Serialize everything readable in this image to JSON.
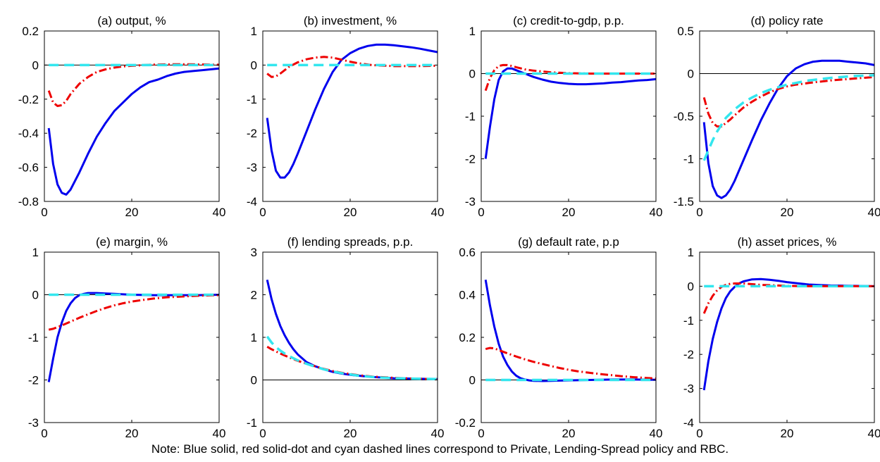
{
  "note": "Note: Blue solid, red solid-dot and cyan dashed lines correspond to Private, Lending-Spread policy and RBC.",
  "colors": {
    "private": "#0000ee",
    "lending_spread": "#ee0000",
    "rbc": "#33e6ee"
  },
  "chart_data": [
    {
      "type": "line",
      "title": "(a) output, %",
      "xlim": [
        0,
        40
      ],
      "ylim": [
        -0.8,
        0.2
      ],
      "xticks": [
        0,
        20,
        40
      ],
      "yticks": [
        0.2,
        0,
        -0.2,
        -0.4,
        -0.6,
        -0.8
      ],
      "ytick_labels": [
        "0.2",
        "0",
        "-0.2",
        "-0.4",
        "-0.6",
        "-0.8"
      ],
      "zero_line": true,
      "series": [
        {
          "style": "solid",
          "x": [
            1,
            2,
            3,
            4,
            5,
            6,
            8,
            10,
            12,
            14,
            16,
            18,
            20,
            22,
            24,
            26,
            28,
            30,
            32,
            34,
            36,
            38,
            40
          ],
          "y": [
            -0.37,
            -0.58,
            -0.7,
            -0.75,
            -0.76,
            -0.73,
            -0.63,
            -0.52,
            -0.42,
            -0.34,
            -0.27,
            -0.22,
            -0.17,
            -0.13,
            -0.1,
            -0.085,
            -0.065,
            -0.05,
            -0.04,
            -0.035,
            -0.03,
            -0.025,
            -0.02
          ]
        },
        {
          "style": "dashdot",
          "x": [
            1,
            2,
            3,
            4,
            5,
            6,
            8,
            10,
            12,
            14,
            16,
            18,
            20,
            25,
            30,
            35,
            40
          ],
          "y": [
            -0.15,
            -0.22,
            -0.24,
            -0.235,
            -0.21,
            -0.17,
            -0.11,
            -0.07,
            -0.04,
            -0.025,
            -0.015,
            -0.008,
            -0.004,
            0.003,
            0.005,
            0.004,
            0.002
          ]
        },
        {
          "style": "dashed",
          "x": [
            1,
            40
          ],
          "y": [
            0,
            0
          ]
        }
      ]
    },
    {
      "type": "line",
      "title": "(b) investment, %",
      "xlim": [
        0,
        40
      ],
      "ylim": [
        -4,
        1
      ],
      "xticks": [
        0,
        20,
        40
      ],
      "yticks": [
        1,
        0,
        -1,
        -2,
        -3,
        -4
      ],
      "ytick_labels": [
        "1",
        "0",
        "-1",
        "-2",
        "-3",
        "-4"
      ],
      "zero_line": false,
      "series": [
        {
          "style": "solid",
          "x": [
            1,
            2,
            3,
            4,
            5,
            6,
            7,
            8,
            10,
            12,
            14,
            16,
            18,
            20,
            22,
            24,
            26,
            28,
            30,
            32,
            34,
            36,
            38,
            40
          ],
          "y": [
            -1.55,
            -2.5,
            -3.1,
            -3.3,
            -3.3,
            -3.15,
            -2.9,
            -2.6,
            -1.95,
            -1.3,
            -0.7,
            -0.2,
            0.15,
            0.35,
            0.48,
            0.56,
            0.6,
            0.6,
            0.58,
            0.55,
            0.52,
            0.48,
            0.43,
            0.38
          ]
        },
        {
          "style": "dashdot",
          "x": [
            1,
            2,
            3,
            4,
            5,
            6,
            8,
            10,
            12,
            14,
            16,
            18,
            20,
            22,
            25,
            30,
            35,
            40
          ],
          "y": [
            -0.25,
            -0.35,
            -0.33,
            -0.25,
            -0.15,
            -0.05,
            0.08,
            0.17,
            0.22,
            0.24,
            0.22,
            0.16,
            0.1,
            0.05,
            0.0,
            -0.03,
            -0.03,
            -0.02
          ]
        },
        {
          "style": "dashed",
          "x": [
            1,
            40
          ],
          "y": [
            0,
            0
          ]
        }
      ]
    },
    {
      "type": "line",
      "title": "(c) credit-to-gdp, p.p.",
      "xlim": [
        0,
        40
      ],
      "ylim": [
        -3,
        1
      ],
      "xticks": [
        0,
        20,
        40
      ],
      "yticks": [
        1,
        0,
        -1,
        -2,
        -3
      ],
      "ytick_labels": [
        "1",
        "0",
        "-1",
        "-2",
        "-3"
      ],
      "zero_line": true,
      "series": [
        {
          "style": "solid",
          "x": [
            1,
            2,
            3,
            4,
            5,
            6,
            7,
            8,
            10,
            12,
            14,
            16,
            18,
            20,
            22,
            24,
            26,
            28,
            30,
            32,
            34,
            36,
            38,
            40
          ],
          "y": [
            -2.0,
            -1.25,
            -0.6,
            -0.15,
            0.05,
            0.12,
            0.12,
            0.08,
            0.0,
            -0.08,
            -0.14,
            -0.19,
            -0.22,
            -0.24,
            -0.25,
            -0.25,
            -0.24,
            -0.23,
            -0.21,
            -0.2,
            -0.18,
            -0.16,
            -0.15,
            -0.13
          ]
        },
        {
          "style": "dashdot",
          "x": [
            1,
            2,
            3,
            4,
            5,
            6,
            7,
            8,
            10,
            12,
            14,
            16,
            18,
            20,
            25,
            30,
            35,
            40
          ],
          "y": [
            -0.4,
            -0.1,
            0.08,
            0.18,
            0.2,
            0.2,
            0.18,
            0.15,
            0.1,
            0.07,
            0.05,
            0.03,
            0.02,
            0.01,
            0.0,
            0.0,
            0.0,
            0.0
          ]
        },
        {
          "style": "dashed",
          "x": [
            1,
            40
          ],
          "y": [
            0,
            0
          ]
        }
      ]
    },
    {
      "type": "line",
      "title": "(d) policy rate",
      "xlim": [
        0,
        40
      ],
      "ylim": [
        -1.5,
        0.5
      ],
      "xticks": [
        0,
        20,
        40
      ],
      "yticks": [
        0.5,
        0,
        -0.5,
        -1,
        -1.5
      ],
      "ytick_labels": [
        "0.5",
        "0",
        "-0.5",
        "-1",
        "-1.5"
      ],
      "zero_line": true,
      "series": [
        {
          "style": "solid",
          "x": [
            1,
            2,
            3,
            4,
            5,
            6,
            7,
            8,
            10,
            12,
            14,
            16,
            18,
            20,
            22,
            24,
            26,
            28,
            30,
            32,
            34,
            36,
            38,
            40
          ],
          "y": [
            -0.57,
            -1.05,
            -1.32,
            -1.43,
            -1.46,
            -1.43,
            -1.36,
            -1.26,
            -1.02,
            -0.78,
            -0.55,
            -0.35,
            -0.17,
            -0.03,
            0.06,
            0.11,
            0.14,
            0.15,
            0.15,
            0.15,
            0.14,
            0.13,
            0.12,
            0.1
          ]
        },
        {
          "style": "dashdot",
          "x": [
            1,
            2,
            3,
            4,
            5,
            6,
            7,
            8,
            10,
            12,
            14,
            16,
            18,
            20,
            22,
            25,
            30,
            35,
            40
          ],
          "y": [
            -0.28,
            -0.47,
            -0.58,
            -0.62,
            -0.62,
            -0.58,
            -0.54,
            -0.49,
            -0.4,
            -0.33,
            -0.27,
            -0.22,
            -0.18,
            -0.15,
            -0.13,
            -0.11,
            -0.08,
            -0.06,
            -0.04
          ]
        },
        {
          "style": "dashed",
          "x": [
            1,
            2,
            3,
            4,
            5,
            6,
            8,
            10,
            12,
            14,
            16,
            18,
            20,
            22,
            25,
            30,
            35,
            40
          ],
          "y": [
            -1.02,
            -0.9,
            -0.78,
            -0.68,
            -0.6,
            -0.52,
            -0.42,
            -0.34,
            -0.28,
            -0.23,
            -0.19,
            -0.16,
            -0.13,
            -0.11,
            -0.08,
            -0.05,
            -0.03,
            -0.02
          ]
        }
      ]
    },
    {
      "type": "line",
      "title": "(e) margin, %",
      "xlim": [
        0,
        40
      ],
      "ylim": [
        -3,
        1
      ],
      "xticks": [
        0,
        20,
        40
      ],
      "yticks": [
        1,
        0,
        -1,
        -2,
        -3
      ],
      "ytick_labels": [
        "1",
        "0",
        "-1",
        "-2",
        "-3"
      ],
      "zero_line": true,
      "series": [
        {
          "style": "solid",
          "x": [
            1,
            2,
            3,
            4,
            5,
            6,
            7,
            8,
            9,
            10,
            12,
            14,
            16,
            18,
            20,
            25,
            30,
            35,
            40
          ],
          "y": [
            -2.05,
            -1.5,
            -1.0,
            -0.65,
            -0.38,
            -0.2,
            -0.08,
            -0.01,
            0.02,
            0.04,
            0.04,
            0.03,
            0.02,
            0.01,
            0.0,
            -0.01,
            -0.01,
            -0.01,
            0.0
          ]
        },
        {
          "style": "dashdot",
          "x": [
            1,
            2,
            4,
            6,
            8,
            10,
            12,
            14,
            16,
            18,
            20,
            22,
            25,
            28,
            30,
            32,
            35,
            38,
            40
          ],
          "y": [
            -0.82,
            -0.8,
            -0.72,
            -0.63,
            -0.54,
            -0.46,
            -0.38,
            -0.31,
            -0.25,
            -0.2,
            -0.16,
            -0.13,
            -0.09,
            -0.06,
            -0.05,
            -0.04,
            -0.025,
            -0.015,
            -0.01
          ]
        },
        {
          "style": "dashed",
          "x": [
            1,
            40
          ],
          "y": [
            0,
            0
          ]
        }
      ]
    },
    {
      "type": "line",
      "title": "(f) lending spreads, p.p.",
      "xlim": [
        0,
        40
      ],
      "ylim": [
        -1,
        3
      ],
      "xticks": [
        0,
        20,
        40
      ],
      "yticks": [
        3,
        2,
        1,
        0,
        -1
      ],
      "ytick_labels": [
        "3",
        "2",
        "1",
        "0",
        "-1"
      ],
      "zero_line": true,
      "series": [
        {
          "style": "solid",
          "x": [
            1,
            2,
            3,
            4,
            5,
            6,
            7,
            8,
            10,
            12,
            14,
            16,
            18,
            20,
            22,
            25,
            30,
            35,
            40
          ],
          "y": [
            2.35,
            1.9,
            1.55,
            1.27,
            1.05,
            0.87,
            0.72,
            0.6,
            0.42,
            0.32,
            0.25,
            0.19,
            0.15,
            0.12,
            0.1,
            0.07,
            0.04,
            0.03,
            0.02
          ]
        },
        {
          "style": "dashdot",
          "x": [
            1,
            2,
            4,
            6,
            8,
            10,
            12,
            14,
            16,
            18,
            20,
            22,
            25,
            30,
            35,
            40
          ],
          "y": [
            0.78,
            0.72,
            0.62,
            0.53,
            0.45,
            0.38,
            0.32,
            0.26,
            0.21,
            0.17,
            0.14,
            0.11,
            0.08,
            0.05,
            0.03,
            0.02
          ]
        },
        {
          "style": "dashed",
          "x": [
            1,
            2,
            3,
            4,
            5,
            6,
            8,
            10,
            12,
            14,
            16,
            18,
            20,
            22,
            25,
            30,
            35,
            40
          ],
          "y": [
            1.02,
            0.88,
            0.77,
            0.69,
            0.62,
            0.56,
            0.46,
            0.38,
            0.31,
            0.25,
            0.2,
            0.16,
            0.13,
            0.1,
            0.07,
            0.04,
            0.03,
            0.02
          ]
        }
      ]
    },
    {
      "type": "line",
      "title": "(g) default rate, p.p",
      "xlim": [
        0,
        40
      ],
      "ylim": [
        -0.2,
        0.6
      ],
      "xticks": [
        0,
        20,
        40
      ],
      "yticks": [
        0.6,
        0.4,
        0.2,
        0,
        -0.2
      ],
      "ytick_labels": [
        "0.6",
        "0.4",
        "0.2",
        "0",
        "-0.2"
      ],
      "zero_line": true,
      "series": [
        {
          "style": "solid",
          "x": [
            1,
            2,
            3,
            4,
            5,
            6,
            7,
            8,
            9,
            10,
            11,
            12,
            14,
            16,
            18,
            20,
            25,
            30,
            35,
            40
          ],
          "y": [
            0.47,
            0.35,
            0.25,
            0.17,
            0.11,
            0.07,
            0.04,
            0.02,
            0.008,
            0.002,
            -0.002,
            -0.004,
            -0.005,
            -0.004,
            -0.003,
            -0.002,
            0.0,
            0.002,
            0.002,
            0.001
          ]
        },
        {
          "style": "dashdot",
          "x": [
            1,
            2,
            3,
            4,
            6,
            8,
            10,
            12,
            14,
            16,
            18,
            20,
            22,
            25,
            28,
            30,
            32,
            35,
            38,
            40
          ],
          "y": [
            0.145,
            0.15,
            0.148,
            0.14,
            0.125,
            0.11,
            0.097,
            0.085,
            0.075,
            0.065,
            0.056,
            0.048,
            0.041,
            0.033,
            0.026,
            0.022,
            0.018,
            0.013,
            0.009,
            0.007
          ]
        },
        {
          "style": "dashed",
          "x": [
            1,
            40
          ],
          "y": [
            0,
            0
          ]
        }
      ]
    },
    {
      "type": "line",
      "title": "(h) asset prices, %",
      "xlim": [
        0,
        40
      ],
      "ylim": [
        -4,
        1
      ],
      "xticks": [
        0,
        20,
        40
      ],
      "yticks": [
        1,
        0,
        -1,
        -2,
        -3,
        -4
      ],
      "ytick_labels": [
        "1",
        "0",
        "-1",
        "-2",
        "-3",
        "-4"
      ],
      "zero_line": false,
      "series": [
        {
          "style": "solid",
          "x": [
            1,
            2,
            3,
            4,
            5,
            6,
            7,
            8,
            9,
            10,
            12,
            14,
            16,
            18,
            20,
            22,
            25,
            28,
            30,
            35,
            40
          ],
          "y": [
            -3.05,
            -2.2,
            -1.55,
            -1.05,
            -0.65,
            -0.35,
            -0.15,
            -0.02,
            0.08,
            0.14,
            0.2,
            0.21,
            0.19,
            0.16,
            0.12,
            0.09,
            0.05,
            0.03,
            0.02,
            0.01,
            0.0
          ]
        },
        {
          "style": "dashdot",
          "x": [
            1,
            2,
            3,
            4,
            5,
            6,
            7,
            8,
            10,
            12,
            14,
            16,
            18,
            20,
            25,
            30,
            35,
            40
          ],
          "y": [
            -0.8,
            -0.5,
            -0.28,
            -0.12,
            -0.02,
            0.04,
            0.07,
            0.08,
            0.08,
            0.06,
            0.04,
            0.03,
            0.02,
            0.01,
            0.0,
            0.0,
            0.0,
            0.0
          ]
        },
        {
          "style": "dashed",
          "x": [
            1,
            40
          ],
          "y": [
            0,
            0
          ]
        }
      ]
    }
  ]
}
